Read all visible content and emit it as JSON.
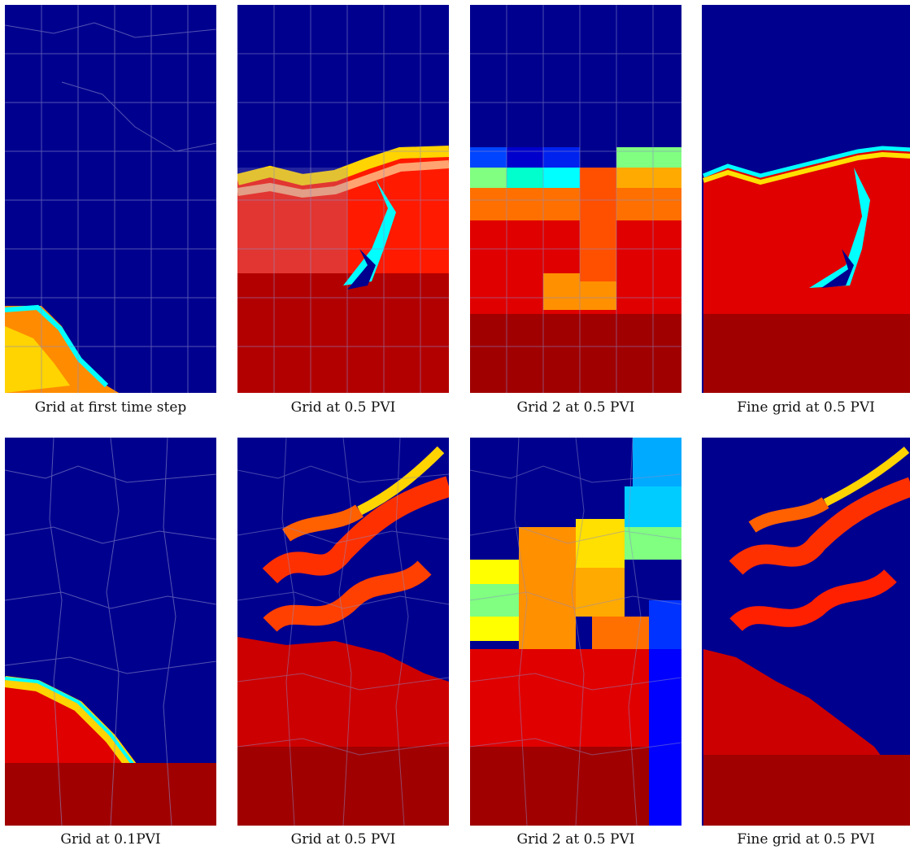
{
  "figure": {
    "rows": [
      {
        "panels": [
          {
            "caption": "Grid at first time step",
            "kind": "coarse-overlay",
            "state": "early"
          },
          {
            "caption": "Grid at 0.5 PVI",
            "kind": "coarse-overlay",
            "state": "mid"
          },
          {
            "caption": "Grid 2 at 0.5 PVI",
            "kind": "block-colors",
            "state": "mid"
          },
          {
            "caption": "Fine grid at 0.5 PVI",
            "kind": "fine",
            "state": "mid"
          }
        ]
      },
      {
        "panels": [
          {
            "caption": "Grid at 0.1PVI",
            "kind": "coarse-overlay",
            "state": "early"
          },
          {
            "caption": "Grid at 0.5 PVI",
            "kind": "coarse-overlay",
            "state": "fingered"
          },
          {
            "caption": "Grid 2 at 0.5 PVI",
            "kind": "block-colors",
            "state": "fingered"
          },
          {
            "caption": "Fine grid at 0.5 PVI",
            "kind": "fine",
            "state": "fingered"
          }
        ]
      }
    ],
    "colormap": "jet",
    "colors": {
      "background_low": "#00008f",
      "saturation_high": "#8b0000",
      "front_mid": "#00ffff",
      "grid_lines": "#8c8cc8"
    }
  }
}
